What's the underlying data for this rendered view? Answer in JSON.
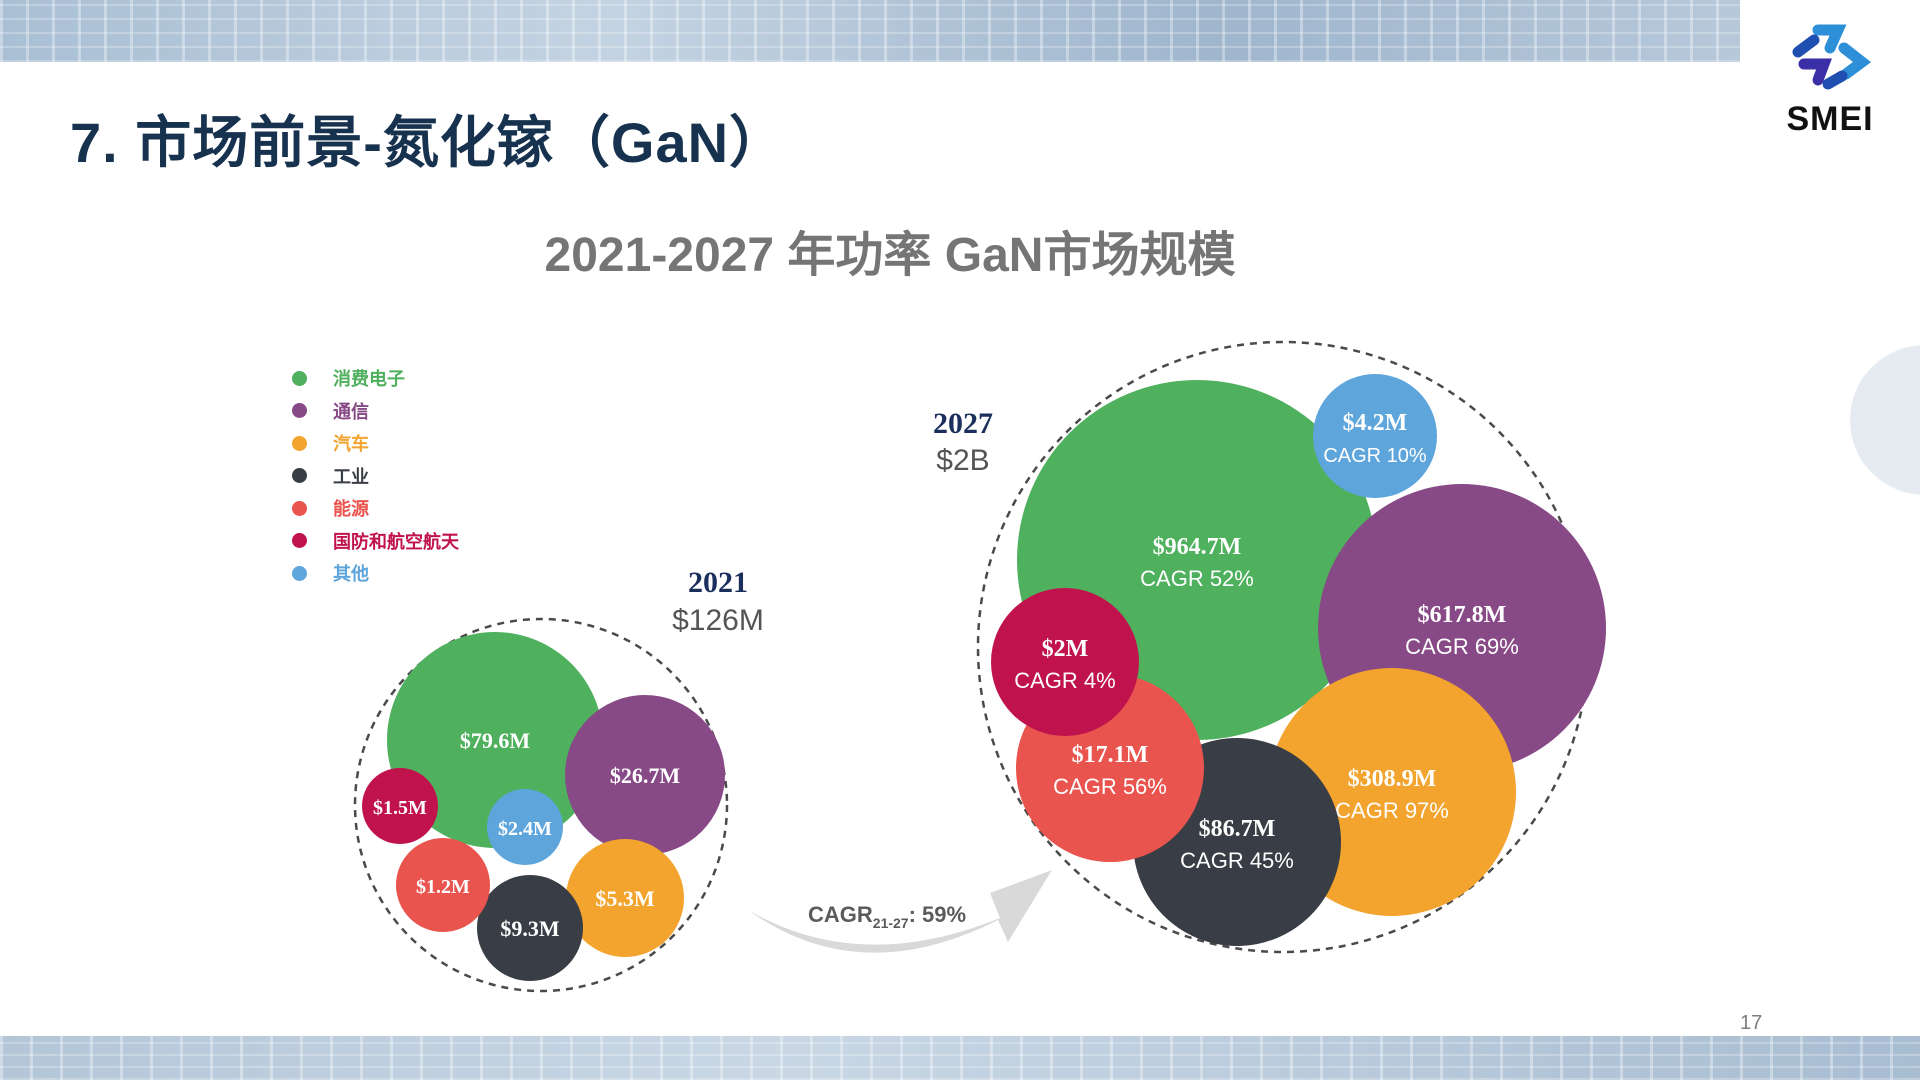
{
  "slide": {
    "title": "7. 市场前景-氮化镓（GaN）",
    "page_number": "17",
    "logo_text": "SMEI"
  },
  "colors": {
    "consumer": "#4fb05e",
    "telecom": "#874a86",
    "automotive": "#f2a42e",
    "industrial": "#393d45",
    "energy": "#e9544e",
    "defense": "#c0134e",
    "other": "#5ea5dc",
    "title": "#17324f",
    "chart_title": "#757575"
  },
  "chart_data": {
    "type": "bubble",
    "title": "2021-2027 年功率 GaN市场规模",
    "legend": {
      "placement": "top-left",
      "items": [
        {
          "key": "consumer",
          "label": "消费电子"
        },
        {
          "key": "telecom",
          "label": "通信"
        },
        {
          "key": "automotive",
          "label": "汽车"
        },
        {
          "key": "industrial",
          "label": "工业"
        },
        {
          "key": "energy",
          "label": "能源"
        },
        {
          "key": "defense",
          "label": "国防和航空航天"
        },
        {
          "key": "other",
          "label": "其他"
        }
      ]
    },
    "groups": [
      {
        "year": "2021",
        "total": "$126M",
        "segments": [
          {
            "key": "consumer",
            "value": 79.6,
            "label": "$79.6M",
            "cagr": ""
          },
          {
            "key": "telecom",
            "value": 26.7,
            "label": "$26.7M",
            "cagr": ""
          },
          {
            "key": "automotive",
            "value": 5.3,
            "label": "$5.3M",
            "cagr": ""
          },
          {
            "key": "industrial",
            "value": 9.3,
            "label": "$9.3M",
            "cagr": ""
          },
          {
            "key": "energy",
            "value": 1.2,
            "label": "$1.2M",
            "cagr": ""
          },
          {
            "key": "defense",
            "value": 1.5,
            "label": "$1.5M",
            "cagr": ""
          },
          {
            "key": "other",
            "value": 2.4,
            "label": "$2.4M",
            "cagr": ""
          }
        ]
      },
      {
        "year": "2027",
        "total": "$2B",
        "segments": [
          {
            "key": "consumer",
            "value": 964.7,
            "label": "$964.7M",
            "cagr": "CAGR 52%"
          },
          {
            "key": "telecom",
            "value": 617.8,
            "label": "$617.8M",
            "cagr": "CAGR 69%"
          },
          {
            "key": "automotive",
            "value": 308.9,
            "label": "$308.9M",
            "cagr": "CAGR 97%"
          },
          {
            "key": "industrial",
            "value": 86.7,
            "label": "$86.7M",
            "cagr": "CAGR 45%"
          },
          {
            "key": "energy",
            "value": 17.1,
            "label": "$17.1M",
            "cagr": "CAGR 56%"
          },
          {
            "key": "defense",
            "value": 2,
            "label": "$2M",
            "cagr": "CAGR 4%"
          },
          {
            "key": "other",
            "value": 4.2,
            "label": "$4.2M",
            "cagr": "CAGR 10%"
          }
        ]
      }
    ],
    "growth": {
      "label": "CAGR",
      "subscript": "21-27",
      "value": ": 59%"
    }
  }
}
